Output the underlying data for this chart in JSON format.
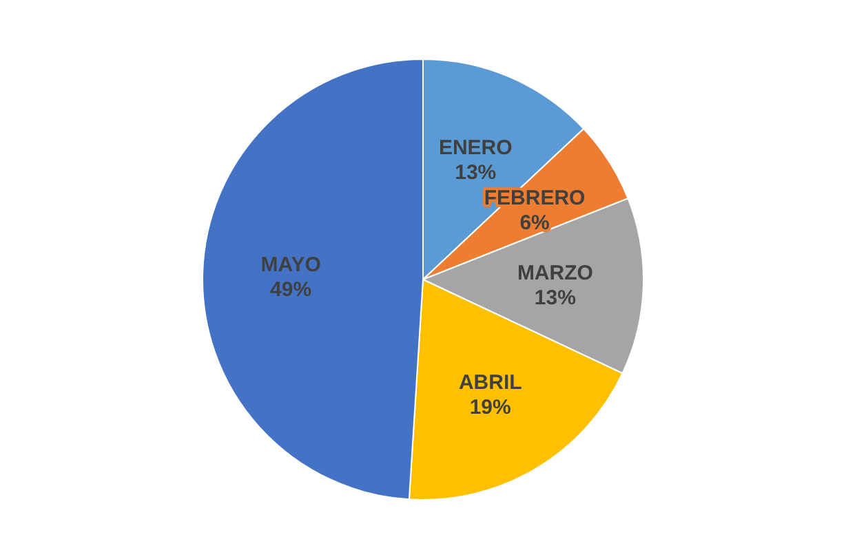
{
  "chart_data": {
    "type": "pie",
    "categories": [
      "ENERO",
      "FEBRERO",
      "MARZO",
      "ABRIL",
      "MAYO"
    ],
    "values": [
      13,
      6,
      13,
      19,
      49
    ],
    "colors": [
      "#5b9bd5",
      "#ed7d31",
      "#a5a5a5",
      "#ffc000",
      "#4472c4"
    ],
    "value_labels": [
      "13%",
      "6%",
      "13%",
      "19%",
      "49%"
    ]
  }
}
